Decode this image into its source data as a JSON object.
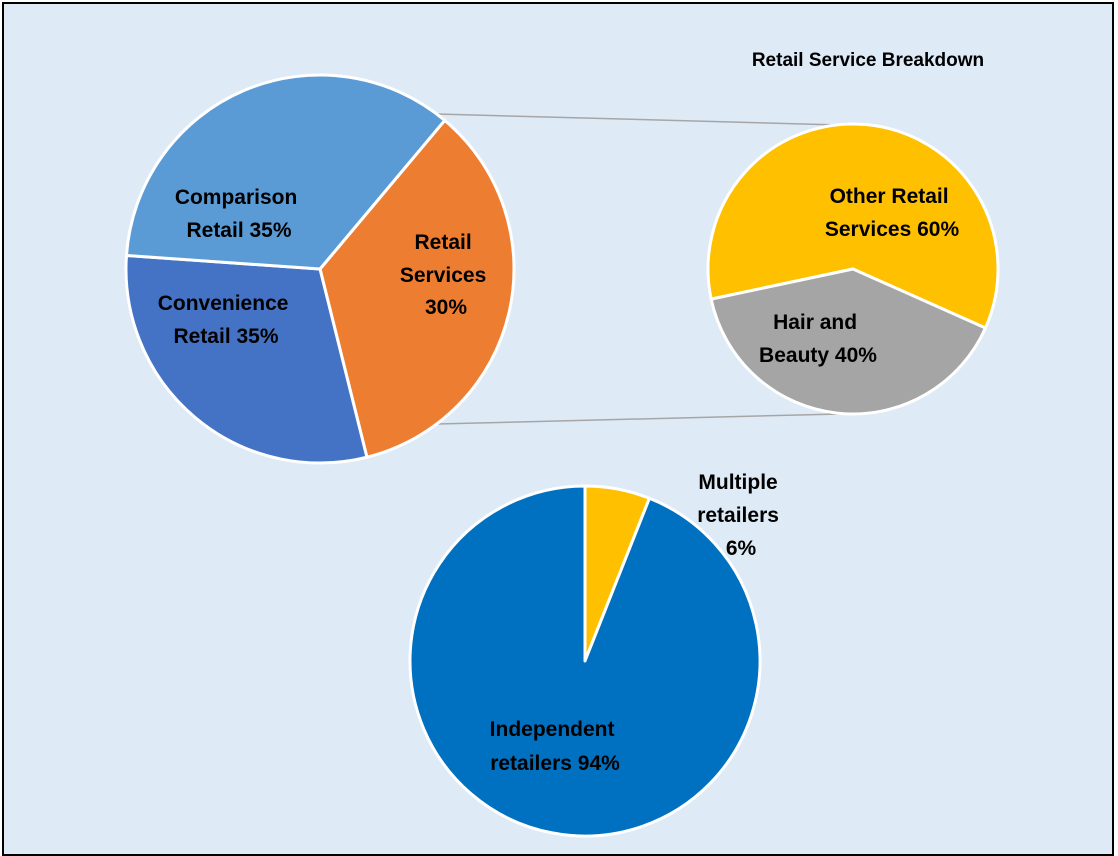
{
  "chart_data": [
    {
      "type": "pie",
      "title": "",
      "slices": [
        {
          "label": "Comparison Retail 35%",
          "label_lines": [
            "Comparison",
            "Retail 35%"
          ],
          "value": 35,
          "color": "#ed7d31"
        },
        {
          "label": "Retail Services 30%",
          "label_lines": [
            "Retail",
            "Services",
            "30%"
          ],
          "value": 30,
          "color": "#4472c4"
        },
        {
          "label": "Convenience Retail 35%",
          "label_lines": [
            "Convenience",
            "Retail 35%"
          ],
          "value": 35,
          "color": "#5b9bd5"
        }
      ]
    },
    {
      "type": "pie",
      "title": "Retail Service Breakdown",
      "slices": [
        {
          "label": "Other Retail Services 60%",
          "label_lines": [
            "Other Retail",
            "Services 60%"
          ],
          "value": 60,
          "color": "#ffc000"
        },
        {
          "label": "Hair and Beauty 40%",
          "label_lines": [
            "Hair and",
            "Beauty 40%"
          ],
          "value": 40,
          "color": "#a5a5a5"
        }
      ]
    },
    {
      "type": "pie",
      "title": "",
      "slices": [
        {
          "label": "Multiple retailers 6%",
          "label_lines": [
            "Multiple",
            "retailers",
            "6%"
          ],
          "value": 6,
          "color": "#ffc000"
        },
        {
          "label": "Independent retailers 94%",
          "label_lines": [
            "Independent",
            "retailers 94%"
          ],
          "value": 94,
          "color": "#0070c0"
        }
      ]
    }
  ],
  "colors": {
    "background": "#deeaf6",
    "border": "#000000",
    "connector": "#a6a6a6",
    "slice_edge": "#ffffff"
  }
}
